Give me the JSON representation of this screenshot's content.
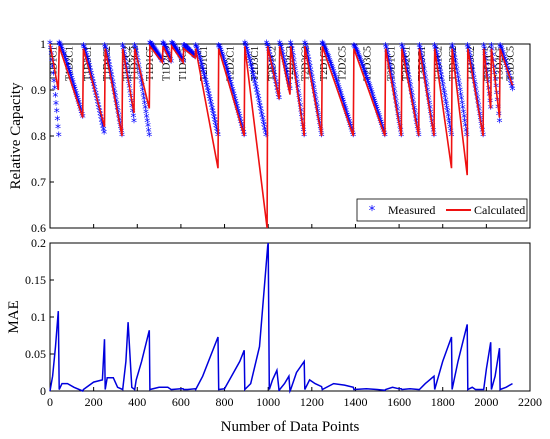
{
  "chart_data": [
    {
      "type": "line",
      "panel": "top",
      "ylabel": "Relative Capacity",
      "xlabel": "",
      "xlim": [
        0,
        2200
      ],
      "ylim": [
        0.6,
        1.0
      ],
      "yticks": [
        0.6,
        0.7,
        0.8,
        0.9,
        1
      ],
      "ytick_labels": [
        "0.6",
        "0.7",
        "0.8",
        "0.9",
        "1"
      ],
      "grid": false,
      "legend_position": "bottom-right",
      "segment_labels": [
        {
          "label": "T1D1C1",
          "x": 15
        },
        {
          "label": "T1D2C1",
          "x": 90
        },
        {
          "label": "T1D3C1",
          "x": 175
        },
        {
          "label": "T1D1C2",
          "x": 262
        },
        {
          "label": "T1D2C2",
          "x": 352
        },
        {
          "label": "T1D3C2",
          "x": 387
        },
        {
          "label": "T1D1C5",
          "x": 458
        },
        {
          "label": "T1D2C5",
          "x": 535
        },
        {
          "label": "T1D3C5",
          "x": 610
        },
        {
          "label": "T2D1C1",
          "x": 705
        },
        {
          "label": "T2D2C1",
          "x": 828
        },
        {
          "label": "T2D3C1",
          "x": 940
        },
        {
          "label": "T2D1C2",
          "x": 1020
        },
        {
          "label": "T2D2C2",
          "x": 1100
        },
        {
          "label": "T2D3C2",
          "x": 1170
        },
        {
          "label": "T2D1C5",
          "x": 1255
        },
        {
          "label": "T2D2C5",
          "x": 1340
        },
        {
          "label": "T2D3C5",
          "x": 1455
        },
        {
          "label": "T3D1C1",
          "x": 1565
        },
        {
          "label": "T3D2C1",
          "x": 1635
        },
        {
          "label": "T3D3C1",
          "x": 1705
        },
        {
          "label": "T3D1C2",
          "x": 1780
        },
        {
          "label": "T3D2C2",
          "x": 1848
        },
        {
          "label": "T3D3C2",
          "x": 1930
        },
        {
          "label": "T3D1C5",
          "x": 2010
        },
        {
          "label": "T3D2C5",
          "x": 2060
        },
        {
          "label": "T3D3C5",
          "x": 2110
        }
      ],
      "series": [
        {
          "name": "Measured",
          "style": "marker",
          "marker": "asterisk",
          "color": "#0000ff",
          "x": [
            0,
            40,
            42,
            150,
            153,
            248,
            251,
            330,
            333,
            385,
            388,
            455,
            458,
            515,
            518,
            555,
            558,
            610,
            613,
            665,
            668,
            770,
            773,
            890,
            893,
            990,
            993,
            1050,
            1053,
            1100,
            1103,
            1165,
            1168,
            1245,
            1248,
            1390,
            1393,
            1535,
            1538,
            1610,
            1613,
            1690,
            1693,
            1760,
            1763,
            1840,
            1843,
            1910,
            1913,
            1985,
            1988,
            2020,
            2023,
            2060,
            2063,
            2120
          ],
          "y": [
            1.0,
            0.8,
            1.0,
            0.84,
            0.995,
            0.805,
            0.995,
            0.8,
            0.995,
            0.83,
            0.995,
            0.8,
            1.0,
            0.96,
            1.0,
            0.96,
            1.0,
            0.96,
            0.995,
            0.97,
            0.995,
            0.8,
            0.995,
            0.8,
            1.0,
            0.8,
            1.0,
            0.88,
            1.0,
            0.9,
            1.0,
            0.8,
            1.0,
            0.8,
            1.0,
            0.8,
            0.995,
            0.8,
            0.995,
            0.8,
            0.995,
            0.8,
            0.995,
            0.8,
            0.995,
            0.8,
            0.995,
            0.8,
            0.995,
            0.8,
            0.995,
            0.86,
            0.995,
            0.83,
            0.995,
            0.9
          ]
        },
        {
          "name": "Calculated",
          "style": "line",
          "color": "#ee1111",
          "x": [
            0,
            38,
            42,
            150,
            153,
            250,
            253,
            330,
            333,
            385,
            388,
            455,
            458,
            515,
            518,
            555,
            558,
            610,
            613,
            665,
            668,
            770,
            773,
            890,
            893,
            995,
            998,
            1050,
            1053,
            1100,
            1103,
            1165,
            1168,
            1245,
            1248,
            1390,
            1393,
            1535,
            1538,
            1610,
            1613,
            1690,
            1693,
            1760,
            1763,
            1840,
            1843,
            1912,
            1915,
            1985,
            1988,
            2020,
            2023,
            2060,
            2063,
            2120
          ],
          "y": [
            1.0,
            0.9,
            0.995,
            0.84,
            0.99,
            0.82,
            0.99,
            0.8,
            0.99,
            0.85,
            0.99,
            0.86,
            0.995,
            0.96,
            0.995,
            0.96,
            0.995,
            0.96,
            0.99,
            0.97,
            0.99,
            0.73,
            0.99,
            0.8,
            0.995,
            0.6,
            0.995,
            0.88,
            0.995,
            0.89,
            0.995,
            0.8,
            0.995,
            0.8,
            0.995,
            0.8,
            0.99,
            0.8,
            0.99,
            0.8,
            0.99,
            0.8,
            0.99,
            0.8,
            0.99,
            0.73,
            0.99,
            0.715,
            0.99,
            0.8,
            0.99,
            0.86,
            0.99,
            0.84,
            0.99,
            0.91
          ]
        }
      ]
    },
    {
      "type": "line",
      "panel": "bottom",
      "ylabel": "MAE",
      "xlabel": "Number of Data Points",
      "xlim": [
        0,
        2200
      ],
      "ylim": [
        0,
        0.2
      ],
      "xticks": [
        0,
        200,
        400,
        600,
        800,
        1000,
        1200,
        1400,
        1600,
        1800,
        2000,
        2200
      ],
      "xtick_labels": [
        "0",
        "200",
        "400",
        "600",
        "800",
        "1000",
        "1200",
        "1400",
        "1600",
        "1800",
        "2000",
        "2200"
      ],
      "yticks": [
        0,
        0.05,
        0.1,
        0.15,
        0.2
      ],
      "ytick_labels": [
        "0",
        "0.05",
        "0.1",
        "0.15",
        "0.2"
      ],
      "grid": false,
      "series": [
        {
          "name": "",
          "color": "#0000dd",
          "x": [
            0,
            12,
            25,
            38,
            42,
            55,
            80,
            110,
            150,
            153,
            200,
            240,
            250,
            253,
            262,
            290,
            310,
            333,
            348,
            358,
            375,
            388,
            395,
            420,
            445,
            455,
            458,
            500,
            540,
            555,
            558,
            600,
            610,
            613,
            630,
            665,
            668,
            700,
            770,
            773,
            800,
            870,
            890,
            893,
            920,
            960,
            998,
            1000,
            1005,
            1020,
            1040,
            1050,
            1053,
            1075,
            1095,
            1100,
            1103,
            1130,
            1165,
            1168,
            1190,
            1215,
            1245,
            1248,
            1300,
            1350,
            1390,
            1393,
            1450,
            1500,
            1535,
            1538,
            1570,
            1600,
            1610,
            1613,
            1650,
            1690,
            1693,
            1720,
            1760,
            1763,
            1800,
            1840,
            1843,
            1870,
            1912,
            1915,
            1935,
            1950,
            1985,
            1988,
            2000,
            2020,
            2023,
            2040,
            2060,
            2063,
            2090,
            2120
          ],
          "y": [
            0.0,
            0.02,
            0.06,
            0.108,
            0.002,
            0.01,
            0.01,
            0.005,
            0.0,
            0.002,
            0.012,
            0.015,
            0.07,
            0.002,
            0.018,
            0.018,
            0.005,
            0.002,
            0.04,
            0.093,
            0.005,
            0.002,
            0.015,
            0.04,
            0.07,
            0.082,
            0.002,
            0.005,
            0.005,
            0.002,
            0.002,
            0.003,
            0.003,
            0.002,
            0.002,
            0.003,
            0.002,
            0.02,
            0.073,
            0.002,
            0.003,
            0.04,
            0.055,
            0.002,
            0.01,
            0.06,
            0.196,
            0.2,
            0.002,
            0.015,
            0.028,
            0.0,
            0.002,
            0.01,
            0.02,
            0.0,
            0.002,
            0.025,
            0.04,
            0.002,
            0.015,
            0.01,
            0.006,
            0.002,
            0.01,
            0.008,
            0.005,
            0.002,
            0.003,
            0.002,
            0.001,
            0.002,
            0.005,
            0.003,
            0.003,
            0.002,
            0.003,
            0.002,
            0.002,
            0.01,
            0.02,
            0.002,
            0.04,
            0.073,
            0.002,
            0.04,
            0.09,
            0.002,
            0.005,
            0.002,
            0.002,
            0.002,
            0.03,
            0.066,
            0.002,
            0.02,
            0.058,
            0.002,
            0.005,
            0.01
          ]
        }
      ]
    }
  ]
}
